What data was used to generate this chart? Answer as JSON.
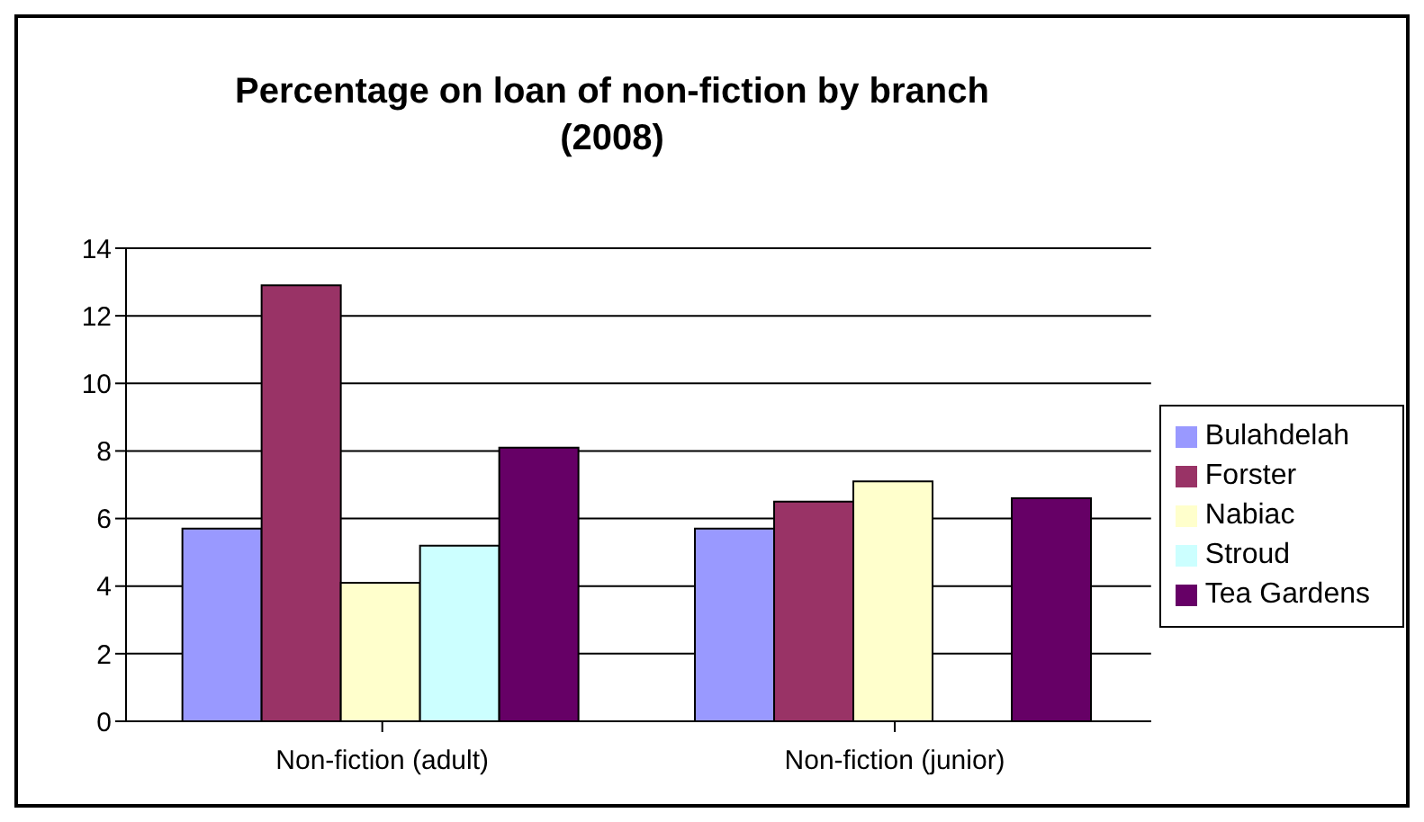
{
  "chart_data": {
    "type": "bar",
    "title": "Percentage on loan of non-fiction by branch\n(2008)",
    "categories": [
      "Non-fiction (adult)",
      "Non-fiction (junior)"
    ],
    "series": [
      {
        "name": "Bulahdelah",
        "color": "#9999ff",
        "values": [
          5.7,
          5.7
        ]
      },
      {
        "name": "Forster",
        "color": "#993366",
        "values": [
          12.9,
          6.5
        ]
      },
      {
        "name": "Nabiac",
        "color": "#ffffcc",
        "values": [
          4.1,
          7.1
        ]
      },
      {
        "name": "Stroud",
        "color": "#ccffff",
        "values": [
          5.2,
          null
        ]
      },
      {
        "name": "Tea Gardens",
        "color": "#660066",
        "values": [
          8.1,
          6.6
        ]
      }
    ],
    "ylim": [
      0,
      14
    ],
    "yticks": [
      0,
      2,
      4,
      6,
      8,
      10,
      12,
      14
    ],
    "grid": "y",
    "legend": "right"
  }
}
